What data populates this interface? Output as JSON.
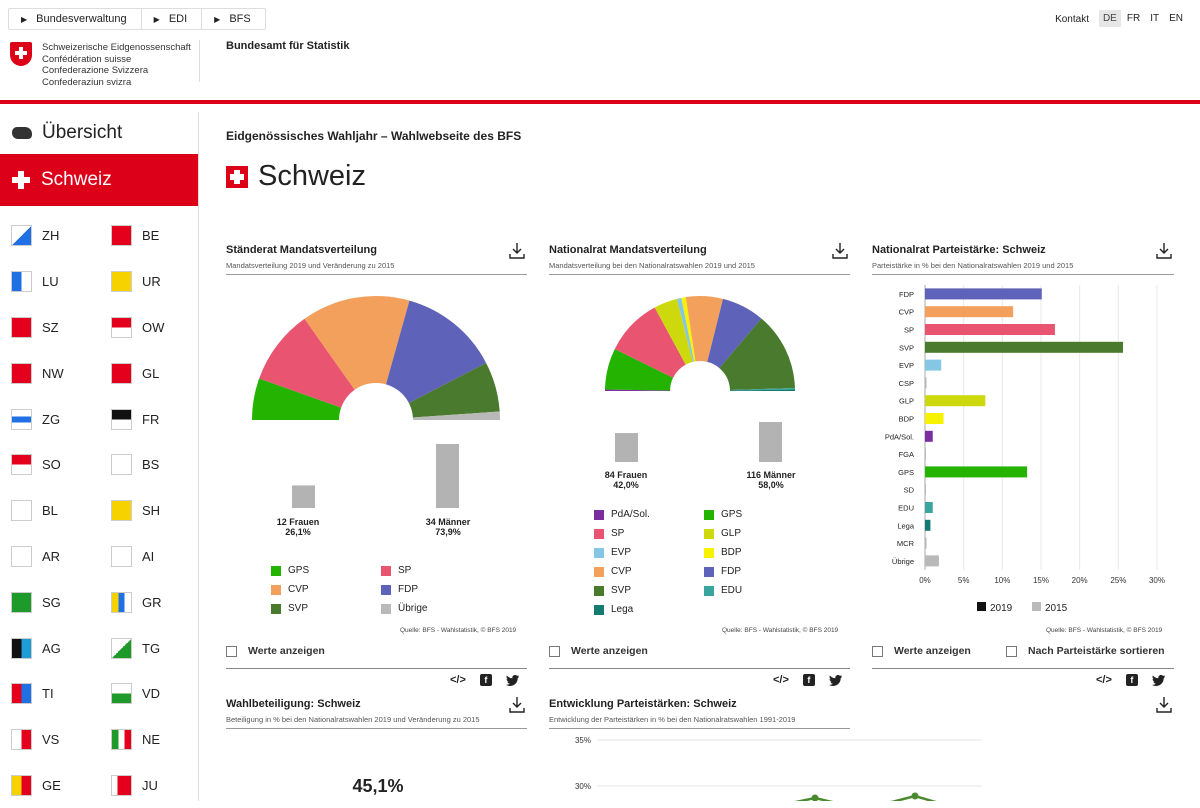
{
  "breadcrumb": [
    "Bundesverwaltung",
    "EDI",
    "BFS"
  ],
  "logo_lines": [
    "Schweizerische Eidgenossenschaft",
    "Confédération suisse",
    "Confederazione Svizzera",
    "Confederaziun svizra"
  ],
  "office": "Bundesamt für Statistik",
  "contact": "Kontakt",
  "languages": [
    "DE",
    "FR",
    "IT",
    "EN"
  ],
  "active_language": "DE",
  "nav": {
    "overview": "Übersicht",
    "active": "Schweiz",
    "cantons": [
      "ZH",
      "BE",
      "LU",
      "UR",
      "SZ",
      "OW",
      "NW",
      "GL",
      "ZG",
      "FR",
      "SO",
      "BS",
      "BL",
      "SH",
      "AR",
      "AI",
      "SG",
      "GR",
      "AG",
      "TG",
      "TI",
      "VD",
      "VS",
      "NE",
      "GE",
      "JU"
    ]
  },
  "page": {
    "header": "Eidgenössisches Wahljahr – Wahlwebseite des BFS",
    "title": "Schweiz"
  },
  "panels": {
    "sr": {
      "title": "Ständerat Mandatsverteilung",
      "subtitle": "Mandatsverteilung 2019 und Veränderung zu 2015",
      "women": "12 Frauen",
      "women_pct": "26,1%",
      "men": "34 Männer",
      "men_pct": "73,9%",
      "source": "Quelle: BFS - Wahlstatistik, © BFS 2019",
      "show_values": "Werte anzeigen"
    },
    "nr": {
      "title": "Nationalrat Mandatsverteilung",
      "subtitle": "Mandatsverteilung bei den Nationalratswahlen 2019 und 2015",
      "women": "84 Frauen",
      "women_pct": "42,0%",
      "men": "116 Männer",
      "men_pct": "58,0%",
      "source": "Quelle: BFS - Wahlstatistik, © BFS 2019",
      "show_values": "Werte anzeigen"
    },
    "ps": {
      "title": "Nationalrat Parteistärke: Schweiz",
      "subtitle": "Parteistärke in % bei den Nationalratswahlen 2019 und 2015",
      "source": "Quelle: BFS - Wahlstatistik, © BFS 2019",
      "show_values": "Werte anzeigen",
      "sort": "Nach Parteistärke sortieren"
    },
    "wb": {
      "title": "Wahlbeteiligung: Schweiz",
      "subtitle": "Beteiligung in % bei den Nationalratswahlen 2019 und Veränderung zu 2015",
      "value": "45,1%"
    },
    "ep": {
      "title": "Entwicklung Parteistärken: Schweiz",
      "subtitle": "Entwicklung der Parteistärken in % bei den Nationalratswahlen 1991-2019",
      "ticks": [
        "35%",
        "30%"
      ]
    }
  },
  "colors": {
    "red": "#dc0018",
    "GPS": "#24b300",
    "SP": "#e95471",
    "CVP": "#f2a05c",
    "FDP": "#5e62b8",
    "SVP": "#4a7a2e",
    "Übrige": "#b9b9b9",
    "PdA/Sol.": "#7b2ea0",
    "EVP": "#85c6e4",
    "GLP": "#cdd90c",
    "BDP": "#f7f200",
    "EDU": "#3aa59e",
    "Lega": "#157a70",
    "gender": "#b3b3b3"
  },
  "chart_data": [
    {
      "type": "pie",
      "title": "Ständerat Mandatsverteilung",
      "labels": [
        "GPS",
        "SP",
        "CVP",
        "FDP",
        "SVP",
        "Übrige"
      ],
      "values": [
        5,
        9,
        13,
        12,
        6,
        1
      ],
      "legend": [
        "GPS",
        "SP",
        "CVP",
        "FDP",
        "SVP",
        "Übrige"
      ]
    },
    {
      "type": "bar",
      "title": "Ständerat Frauen/Männer",
      "categories": [
        "12 Frauen",
        "34 Männer"
      ],
      "values": [
        12,
        34
      ]
    },
    {
      "type": "pie",
      "title": "Nationalrat Mandatsverteilung",
      "labels": [
        "PdA/Sol.",
        "GPS",
        "SP",
        "GLP",
        "EVP",
        "BDP",
        "CVP",
        "FDP",
        "SVP",
        "EDU",
        "Lega"
      ],
      "values": [
        1,
        28,
        39,
        16,
        3,
        3,
        25,
        29,
        53,
        1,
        1
      ],
      "legend": [
        "PdA/Sol.",
        "GPS",
        "SP",
        "GLP",
        "EVP",
        "BDP",
        "CVP",
        "FDP",
        "SVP",
        "EDU",
        "Lega"
      ]
    },
    {
      "type": "bar",
      "title": "Nationalrat Frauen/Männer",
      "categories": [
        "84 Frauen",
        "116 Männer"
      ],
      "values": [
        84,
        116
      ]
    },
    {
      "type": "bar",
      "title": "Nationalrat Parteistärke: Schweiz",
      "categories": [
        "FDP",
        "CVP",
        "SP",
        "SVP",
        "EVP",
        "CSP",
        "GLP",
        "BDP",
        "PdA/Sol.",
        "FGA",
        "GPS",
        "SD",
        "EDU",
        "Lega",
        "MCR",
        "Übrige"
      ],
      "values": [
        15.1,
        11.4,
        16.8,
        25.6,
        2.1,
        0.2,
        7.8,
        2.4,
        1.0,
        0.1,
        13.2,
        0.0,
        1.0,
        0.7,
        0.2,
        1.8
      ],
      "xticks": [
        "0%",
        "5%",
        "10%",
        "15%",
        "20%",
        "25%",
        "30%"
      ],
      "xlim": [
        0,
        30
      ],
      "legend": [
        "2019",
        "2015"
      ]
    },
    {
      "type": "line",
      "title": "Entwicklung Parteistärken: Schweiz",
      "yticks": [
        "35%",
        "30%"
      ]
    }
  ]
}
